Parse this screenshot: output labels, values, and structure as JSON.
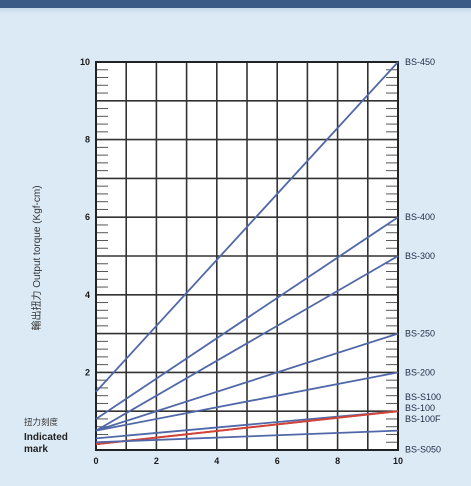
{
  "chart_data": {
    "type": "line",
    "title": "",
    "xlabel": "",
    "ylabel": "輸出扭力 Output torque (Kgf-cm)",
    "xlim": [
      0,
      10
    ],
    "ylim": [
      0,
      10
    ],
    "grid": true,
    "x_ticks": [
      "0",
      "2",
      "4",
      "6",
      "8",
      "10"
    ],
    "y_ticks": [
      "2",
      "4",
      "6",
      "8",
      "10"
    ],
    "indicated_mark_label_cn": "扭力刻度",
    "indicated_mark_label_en": [
      "Indicated",
      "mark"
    ],
    "series": [
      {
        "name": "BS-450",
        "color": "#5068a8",
        "x": [
          0,
          10
        ],
        "y": [
          1.5,
          10.0
        ]
      },
      {
        "name": "BS-400",
        "color": "#5068a8",
        "x": [
          0,
          10
        ],
        "y": [
          0.8,
          6.0
        ]
      },
      {
        "name": "BS-300",
        "color": "#5068a8",
        "x": [
          0,
          10
        ],
        "y": [
          0.5,
          5.0
        ]
      },
      {
        "name": "BS-250",
        "color": "#5068a8",
        "x": [
          0,
          10
        ],
        "y": [
          0.5,
          3.0
        ]
      },
      {
        "name": "BS-200",
        "color": "#5068a8",
        "x": [
          0,
          10
        ],
        "y": [
          0.5,
          2.0
        ]
      },
      {
        "name": "BS-S100",
        "color": "#5068a8",
        "x": [
          0,
          10
        ],
        "y": [
          0.3,
          1.0
        ]
      },
      {
        "name": "BS-100",
        "color": "#d0443a",
        "x": [
          0,
          10
        ],
        "y": [
          0.15,
          1.0
        ]
      },
      {
        "name": "BS-100F",
        "color": "#d0443a",
        "x": [
          0,
          10
        ],
        "y": [
          0.15,
          1.0
        ]
      },
      {
        "name": "BS-S050",
        "color": "#5068a8",
        "x": [
          0,
          10
        ],
        "y": [
          0.2,
          0.5
        ]
      }
    ]
  }
}
